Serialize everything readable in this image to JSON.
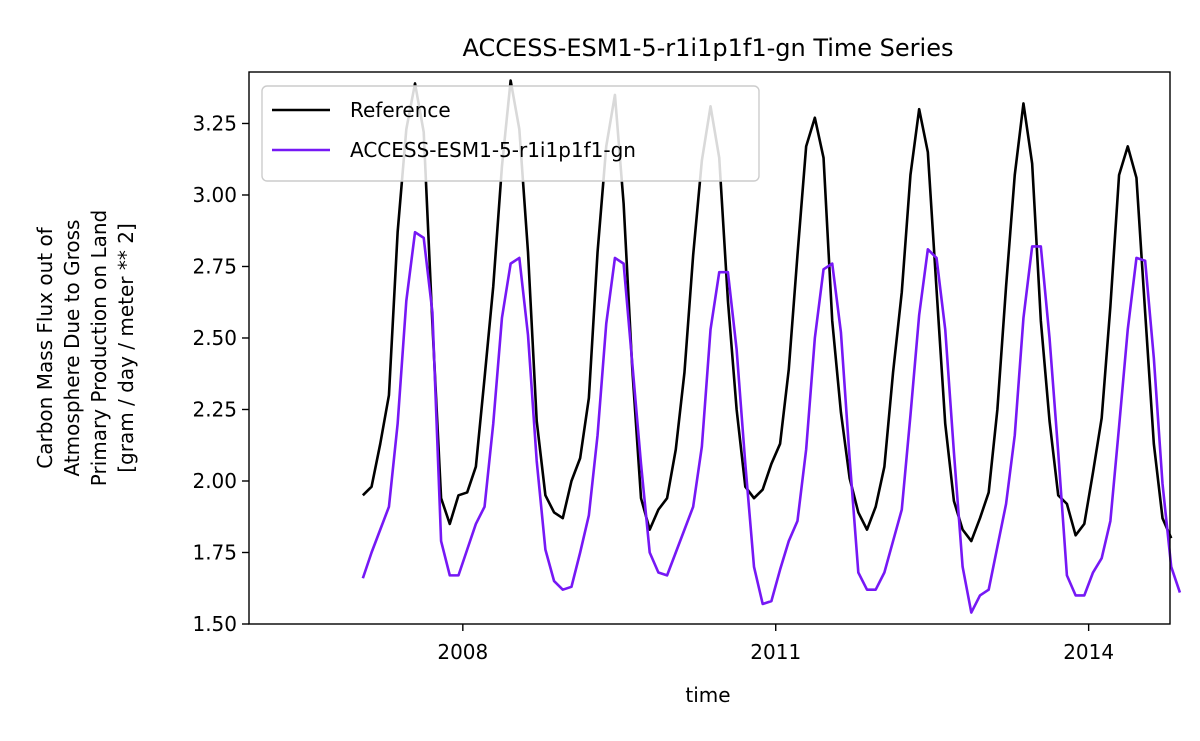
{
  "chart_data": {
    "type": "line",
    "title": "ACCESS-ESM1-5-r1i1p1f1-gn Time Series",
    "xlabel": "time",
    "ylabel_lines": [
      "Carbon Mass Flux out of",
      "Atmosphere Due to Gross",
      "Primary Production on Land",
      "[gram / day / meter ** 2]"
    ],
    "x_start_year": 2007,
    "x_ticks": [
      2008,
      2011,
      2014
    ],
    "y_ticks": [
      "1.50",
      "1.75",
      "2.00",
      "2.25",
      "2.50",
      "2.75",
      "3.00",
      "3.25"
    ],
    "xlim": [
      2005.95,
      2014.78
    ],
    "ylim": [
      1.5,
      3.43
    ],
    "legend_position": "upper left",
    "grid": false,
    "series": [
      {
        "name": "Reference",
        "color": "#000000",
        "values": [
          1.95,
          1.98,
          2.13,
          2.3,
          2.87,
          3.23,
          3.39,
          3.22,
          2.55,
          1.94,
          1.85,
          1.95,
          1.96,
          2.05,
          2.36,
          2.68,
          3.1,
          3.4,
          3.23,
          2.8,
          2.21,
          1.95,
          1.89,
          1.87,
          2.0,
          2.08,
          2.29,
          2.8,
          3.17,
          3.35,
          2.97,
          2.39,
          1.94,
          1.83,
          1.9,
          1.94,
          2.11,
          2.38,
          2.79,
          3.12,
          3.31,
          3.13,
          2.63,
          2.25,
          1.98,
          1.94,
          1.97,
          2.06,
          2.13,
          2.39,
          2.79,
          3.17,
          3.27,
          3.13,
          2.56,
          2.24,
          2.01,
          1.89,
          1.83,
          1.91,
          2.05,
          2.38,
          2.66,
          3.07,
          3.3,
          3.15,
          2.67,
          2.2,
          1.93,
          1.83,
          1.79,
          1.87,
          1.96,
          2.25,
          2.68,
          3.07,
          3.32,
          3.11,
          2.56,
          2.21,
          1.95,
          1.92,
          1.81,
          1.85,
          2.03,
          2.22,
          2.61,
          3.07,
          3.17,
          3.06,
          2.59,
          2.13,
          1.87,
          1.8
        ]
      },
      {
        "name": "ACCESS-ESM1-5-r1i1p1f1-gn",
        "color": "#7618f5",
        "values": [
          1.66,
          1.75,
          1.83,
          1.91,
          2.2,
          2.63,
          2.87,
          2.85,
          2.59,
          1.79,
          1.67,
          1.67,
          1.76,
          1.85,
          1.91,
          2.2,
          2.57,
          2.76,
          2.78,
          2.51,
          2.07,
          1.76,
          1.65,
          1.62,
          1.63,
          1.75,
          1.88,
          2.16,
          2.55,
          2.78,
          2.76,
          2.41,
          2.06,
          1.75,
          1.68,
          1.67,
          1.75,
          1.83,
          1.91,
          2.12,
          2.53,
          2.73,
          2.73,
          2.46,
          2.06,
          1.7,
          1.57,
          1.58,
          1.69,
          1.79,
          1.86,
          2.11,
          2.5,
          2.74,
          2.76,
          2.52,
          2.08,
          1.68,
          1.62,
          1.62,
          1.68,
          1.79,
          1.9,
          2.23,
          2.58,
          2.81,
          2.78,
          2.53,
          2.1,
          1.7,
          1.54,
          1.6,
          1.62,
          1.77,
          1.92,
          2.16,
          2.57,
          2.82,
          2.82,
          2.5,
          2.1,
          1.67,
          1.6,
          1.6,
          1.68,
          1.73,
          1.86,
          2.19,
          2.53,
          2.78,
          2.77,
          2.43,
          1.99,
          1.7,
          1.61
        ]
      }
    ]
  }
}
